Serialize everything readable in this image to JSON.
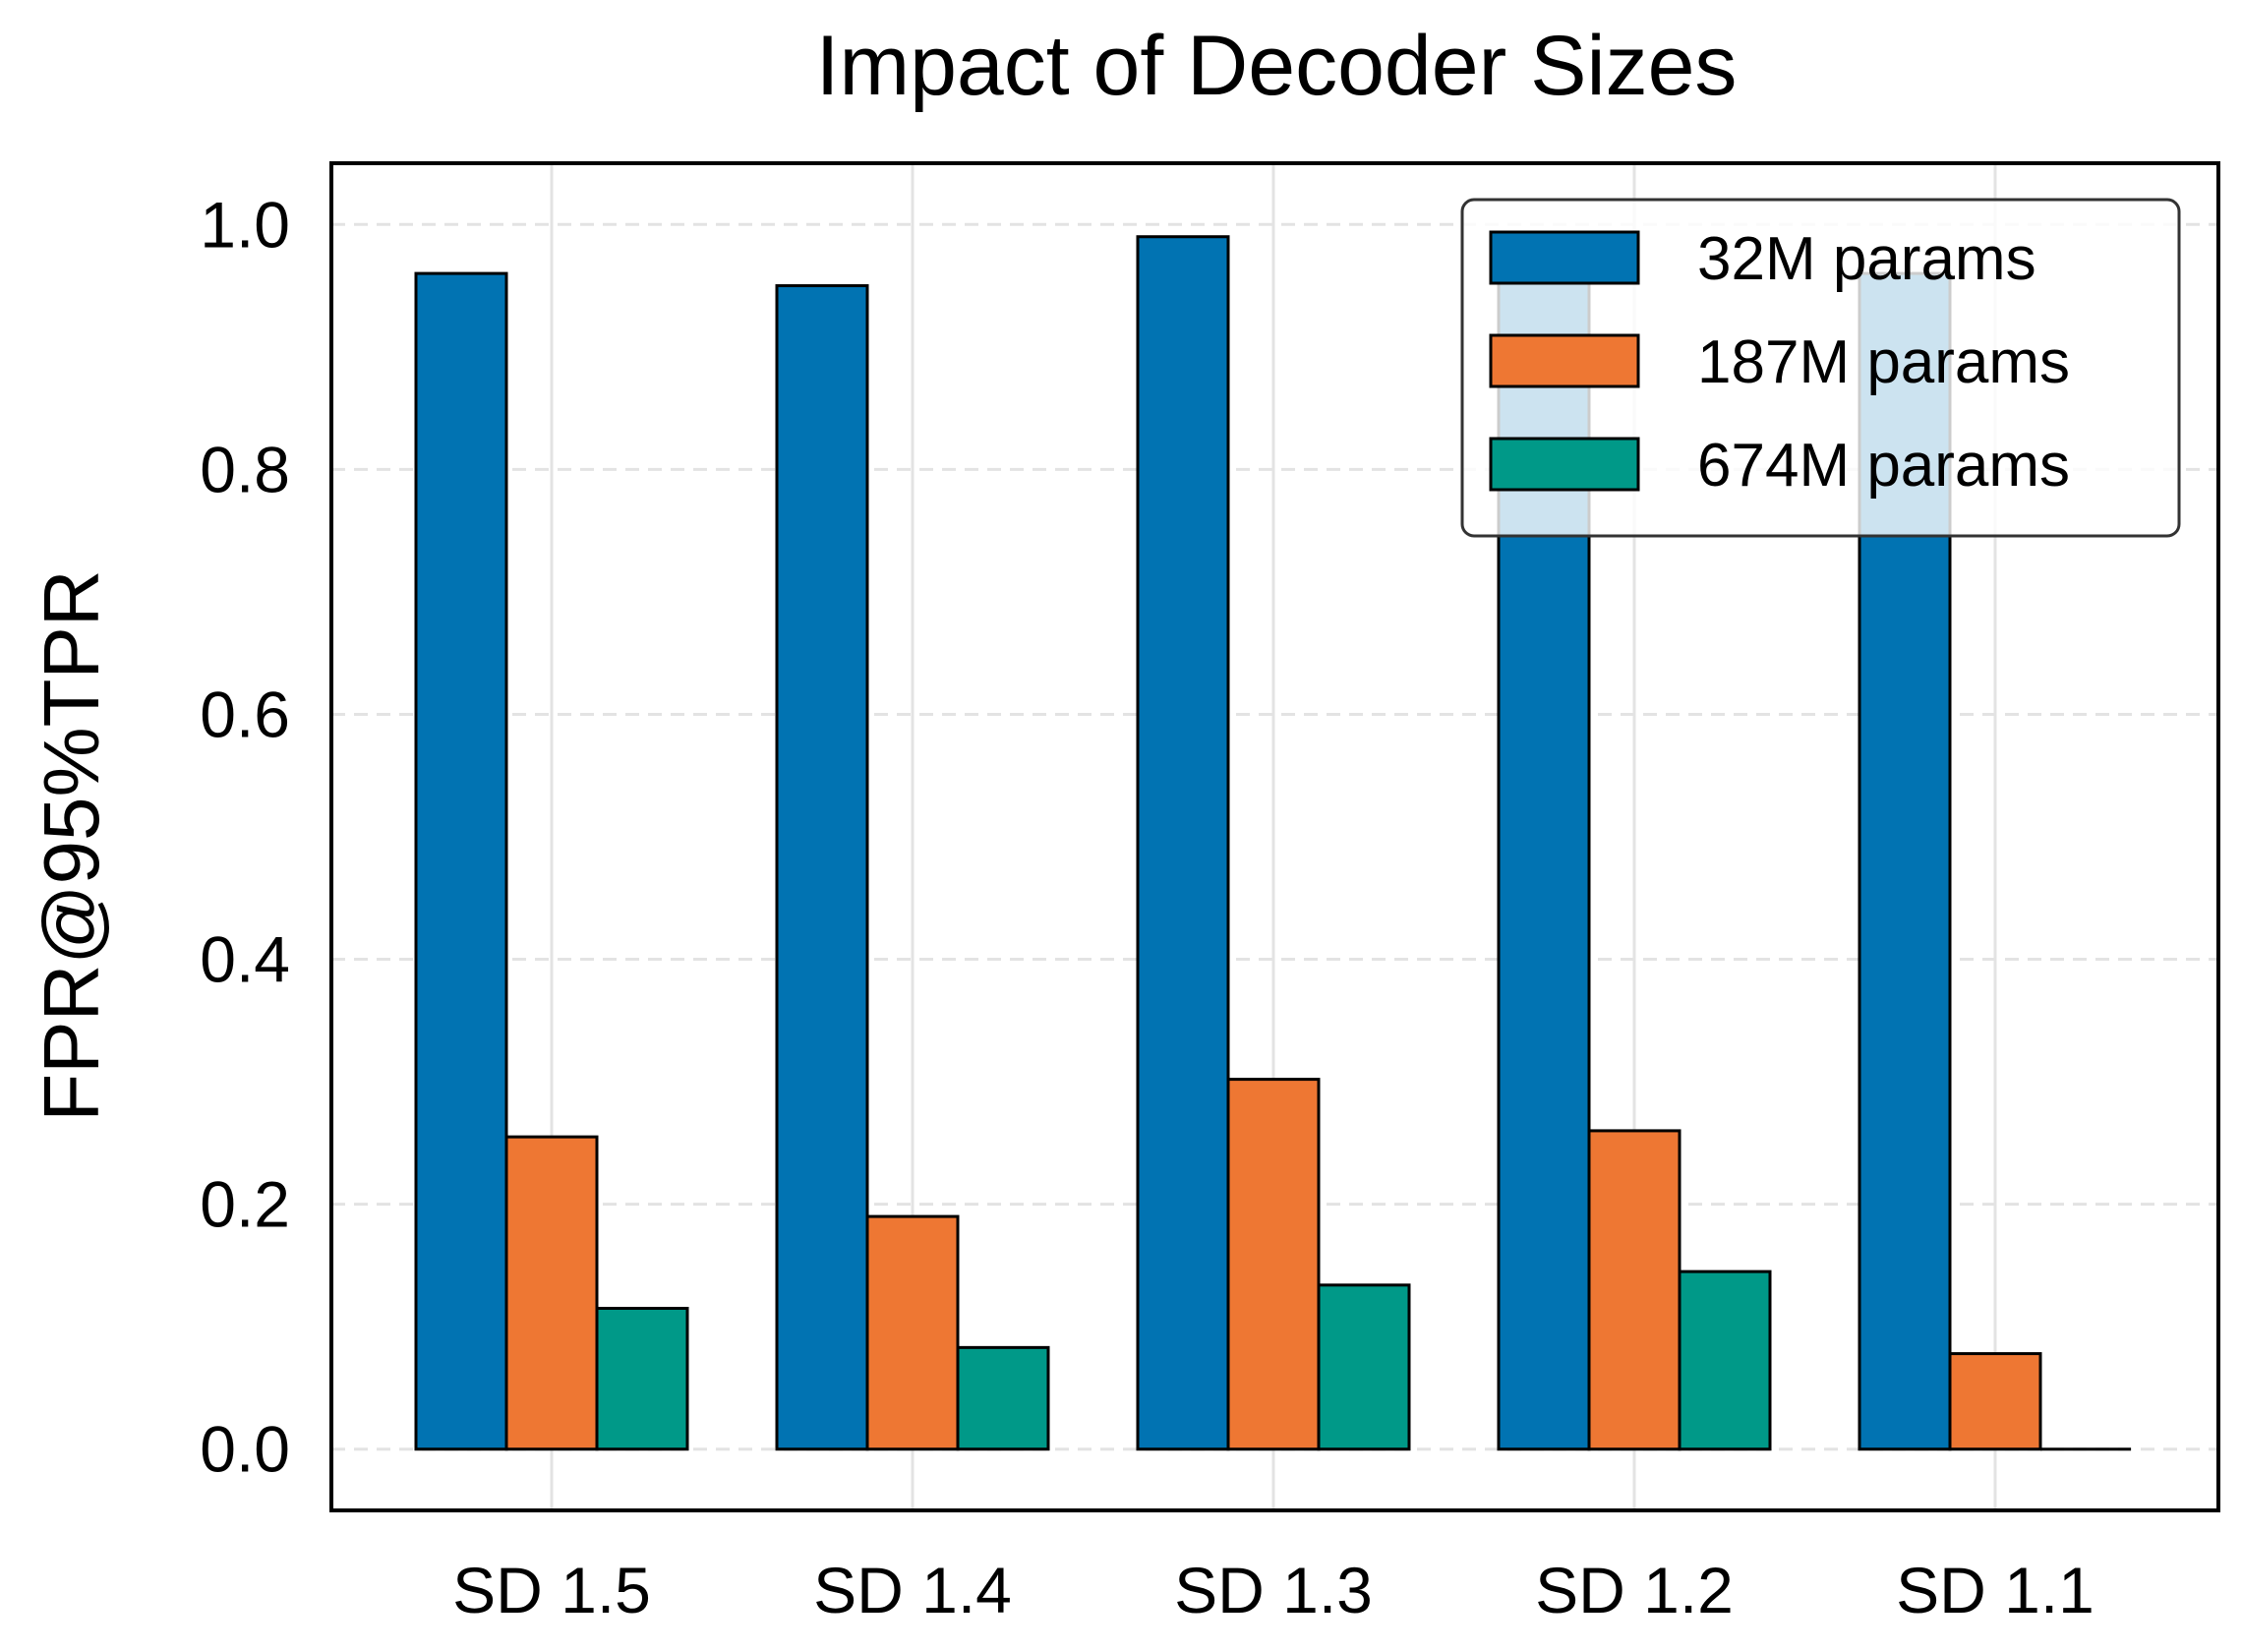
{
  "chart_data": {
    "type": "bar",
    "title": "Impact of Decoder Sizes",
    "xlabel": "",
    "ylabel": "FPR@95%TPR",
    "categories": [
      "SD 1.5",
      "SD 1.4",
      "SD 1.3",
      "SD 1.2",
      "SD 1.1"
    ],
    "series": [
      {
        "name": "32M params",
        "color": "#0173B2",
        "values": [
          0.96,
          0.95,
          0.99,
          0.96,
          0.96
        ]
      },
      {
        "name": "187M params",
        "color": "#EE7733",
        "values": [
          0.255,
          0.19,
          0.302,
          0.26,
          0.078
        ]
      },
      {
        "name": "674M params",
        "color": "#009988",
        "values": [
          0.115,
          0.083,
          0.134,
          0.145,
          0.0
        ]
      }
    ],
    "yticks": [
      "0.0",
      "0.2",
      "0.4",
      "0.6",
      "0.8",
      "1.0"
    ],
    "ylim": [
      -0.05,
      1.05
    ],
    "grid": true,
    "legend_position": "top-right"
  }
}
